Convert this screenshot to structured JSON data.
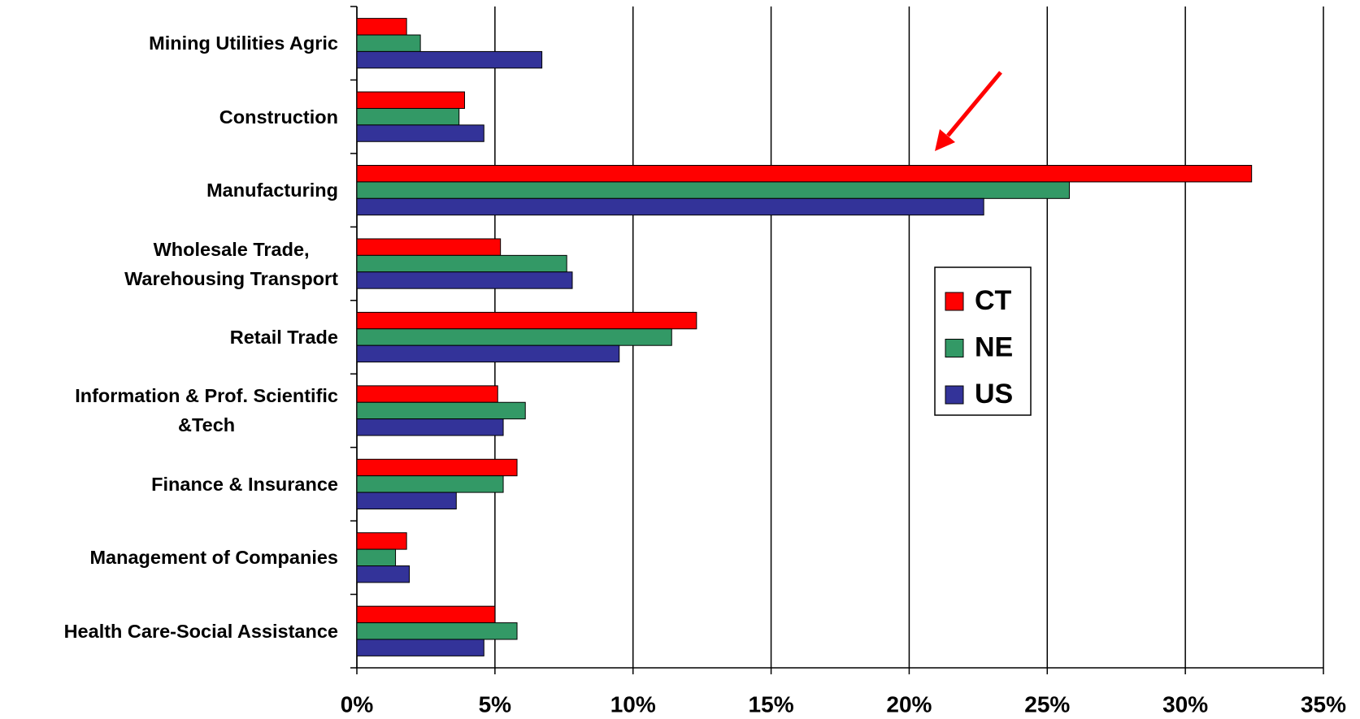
{
  "chart_data": {
    "type": "bar",
    "orientation": "horizontal",
    "categories": [
      "Mining Utilities Agric",
      "Construction",
      "Manufacturing",
      "Wholesale Trade,\nWarehousing Transport",
      "Retail Trade",
      "Information & Prof. Scientific\n&Tech",
      "Finance & Insurance",
      "Management of Companies",
      "Health Care-Social Assistance"
    ],
    "series": [
      {
        "name": "CT",
        "color": "#ff0000",
        "values": [
          1.8,
          3.9,
          32.4,
          5.2,
          12.3,
          5.1,
          5.8,
          1.8,
          5.0
        ]
      },
      {
        "name": "NE",
        "color": "#339966",
        "values": [
          2.3,
          3.7,
          25.8,
          7.6,
          11.4,
          6.1,
          5.3,
          1.4,
          5.8
        ]
      },
      {
        "name": "US",
        "color": "#333399",
        "values": [
          6.7,
          4.6,
          22.7,
          7.8,
          9.5,
          5.3,
          3.6,
          1.9,
          4.6
        ]
      }
    ],
    "xlim": [
      0,
      35
    ],
    "xticks": [
      {
        "value": 0,
        "label": "0%"
      },
      {
        "value": 5,
        "label": "5%"
      },
      {
        "value": 10,
        "label": "10%"
      },
      {
        "value": 15,
        "label": "15%"
      },
      {
        "value": 20,
        "label": "20%"
      },
      {
        "value": 25,
        "label": "25%"
      },
      {
        "value": 30,
        "label": "30%"
      },
      {
        "value": 35,
        "label": "35%"
      }
    ],
    "grid": true,
    "legend": "right"
  }
}
